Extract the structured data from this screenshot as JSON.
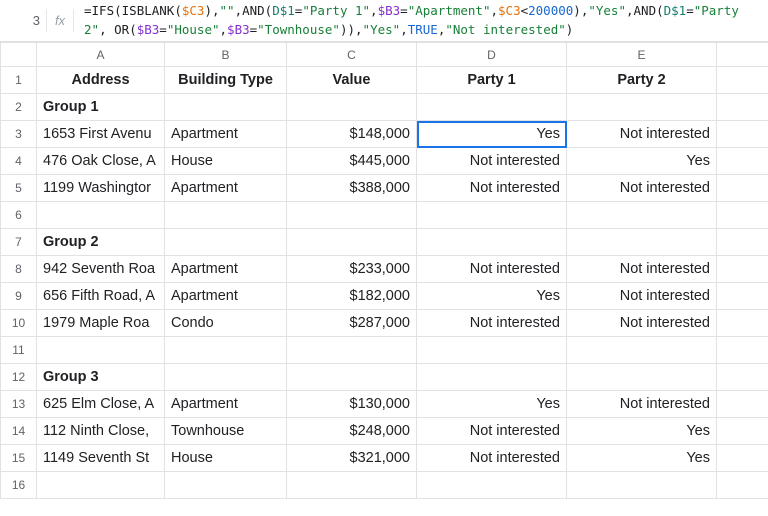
{
  "active_cell_ref": "3",
  "fx_label": "fx",
  "formula_tokens": [
    {
      "t": "=",
      "c": "tok-black"
    },
    {
      "t": "IFS",
      "c": "tok-func"
    },
    {
      "t": "(",
      "c": "tok-black"
    },
    {
      "t": "ISBLANK",
      "c": "tok-func"
    },
    {
      "t": "(",
      "c": "tok-black"
    },
    {
      "t": "$C3",
      "c": "tok-orange"
    },
    {
      "t": ")",
      "c": "tok-black"
    },
    {
      "t": ",",
      "c": "tok-black"
    },
    {
      "t": "\"\"",
      "c": "tok-green"
    },
    {
      "t": ",",
      "c": "tok-black"
    },
    {
      "t": "AND",
      "c": "tok-func"
    },
    {
      "t": "(",
      "c": "tok-black"
    },
    {
      "t": "D$1",
      "c": "tok-teal"
    },
    {
      "t": "=",
      "c": "tok-black"
    },
    {
      "t": "\"Party 1\"",
      "c": "tok-green"
    },
    {
      "t": ",",
      "c": "tok-black"
    },
    {
      "t": "$B3",
      "c": "tok-purple"
    },
    {
      "t": "=",
      "c": "tok-black"
    },
    {
      "t": "\"Apartment\"",
      "c": "tok-green"
    },
    {
      "t": ",",
      "c": "tok-black"
    },
    {
      "t": "$C3",
      "c": "tok-orange"
    },
    {
      "t": "<",
      "c": "tok-black"
    },
    {
      "t": "200000",
      "c": "tok-blue"
    },
    {
      "t": ")",
      "c": "tok-black"
    },
    {
      "t": ",",
      "c": "tok-black"
    },
    {
      "t": "\"Yes\"",
      "c": "tok-green"
    },
    {
      "t": ",",
      "c": "tok-black"
    },
    {
      "t": "AND",
      "c": "tok-func"
    },
    {
      "t": "(",
      "c": "tok-black"
    },
    {
      "t": "D$1",
      "c": "tok-teal"
    },
    {
      "t": "=",
      "c": "tok-black"
    },
    {
      "t": "\"Party 2\"",
      "c": "tok-green"
    },
    {
      "t": ",",
      "c": "tok-black"
    },
    {
      "t": " ",
      "c": "tok-black"
    },
    {
      "t": "OR",
      "c": "tok-func"
    },
    {
      "t": "(",
      "c": "tok-black"
    },
    {
      "t": "$B3",
      "c": "tok-purple"
    },
    {
      "t": "=",
      "c": "tok-black"
    },
    {
      "t": "\"House\"",
      "c": "tok-green"
    },
    {
      "t": ",",
      "c": "tok-black"
    },
    {
      "t": "$B3",
      "c": "tok-purple"
    },
    {
      "t": "=",
      "c": "tok-black"
    },
    {
      "t": "\"Townhouse\"",
      "c": "tok-green"
    },
    {
      "t": "))",
      "c": "tok-black"
    },
    {
      "t": ",",
      "c": "tok-black"
    },
    {
      "t": "\"Yes\"",
      "c": "tok-green"
    },
    {
      "t": ",",
      "c": "tok-black"
    },
    {
      "t": "TRUE",
      "c": "tok-blue"
    },
    {
      "t": ",",
      "c": "tok-black"
    },
    {
      "t": "\"Not interested\"",
      "c": "tok-green"
    },
    {
      "t": ")",
      "c": "tok-black"
    }
  ],
  "columns": [
    "A",
    "B",
    "C",
    "D",
    "E"
  ],
  "col_classes": [
    "colA",
    "colB",
    "colC",
    "colD",
    "colE"
  ],
  "active": {
    "row": 3,
    "col": 3
  },
  "rows": [
    {
      "n": 1,
      "cls": "hdrrow",
      "cells": [
        "Address",
        "Building Type",
        "Value",
        "Party 1",
        "Party 2"
      ]
    },
    {
      "n": 2,
      "cls": "grp",
      "cells": [
        "Group 1",
        "",
        "",
        "",
        ""
      ]
    },
    {
      "n": 3,
      "cls": "",
      "cells": [
        "1653 First Avenu",
        "Apartment",
        "$148,000",
        "Yes",
        "Not interested"
      ]
    },
    {
      "n": 4,
      "cls": "",
      "cells": [
        "476 Oak Close, A",
        "House",
        "$445,000",
        "Not interested",
        "Yes"
      ]
    },
    {
      "n": 5,
      "cls": "",
      "cells": [
        "1199 Washingtor",
        "Apartment",
        "$388,000",
        "Not interested",
        "Not interested"
      ]
    },
    {
      "n": 6,
      "cls": "",
      "cells": [
        "",
        "",
        "",
        "",
        ""
      ]
    },
    {
      "n": 7,
      "cls": "grp",
      "cells": [
        "Group 2",
        "",
        "",
        "",
        ""
      ]
    },
    {
      "n": 8,
      "cls": "",
      "cells": [
        "942 Seventh Roa",
        "Apartment",
        "$233,000",
        "Not interested",
        "Not interested"
      ]
    },
    {
      "n": 9,
      "cls": "",
      "cells": [
        "656 Fifth Road, A",
        "Apartment",
        "$182,000",
        "Yes",
        "Not interested"
      ]
    },
    {
      "n": 10,
      "cls": "",
      "cells": [
        "1979 Maple Roa",
        "Condo",
        "$287,000",
        "Not interested",
        "Not interested"
      ]
    },
    {
      "n": 11,
      "cls": "",
      "cells": [
        "",
        "",
        "",
        "",
        ""
      ]
    },
    {
      "n": 12,
      "cls": "grp",
      "cells": [
        "Group 3",
        "",
        "",
        "",
        ""
      ]
    },
    {
      "n": 13,
      "cls": "",
      "cells": [
        "625 Elm Close, A",
        "Apartment",
        "$130,000",
        "Yes",
        "Not interested"
      ]
    },
    {
      "n": 14,
      "cls": "",
      "cells": [
        "112 Ninth Close,",
        "Townhouse",
        "$248,000",
        "Not interested",
        "Yes"
      ]
    },
    {
      "n": 15,
      "cls": "",
      "cells": [
        "1149 Seventh St",
        "House",
        "$321,000",
        "Not interested",
        "Yes"
      ]
    },
    {
      "n": 16,
      "cls": "",
      "cells": [
        "",
        "",
        "",
        "",
        ""
      ]
    }
  ]
}
